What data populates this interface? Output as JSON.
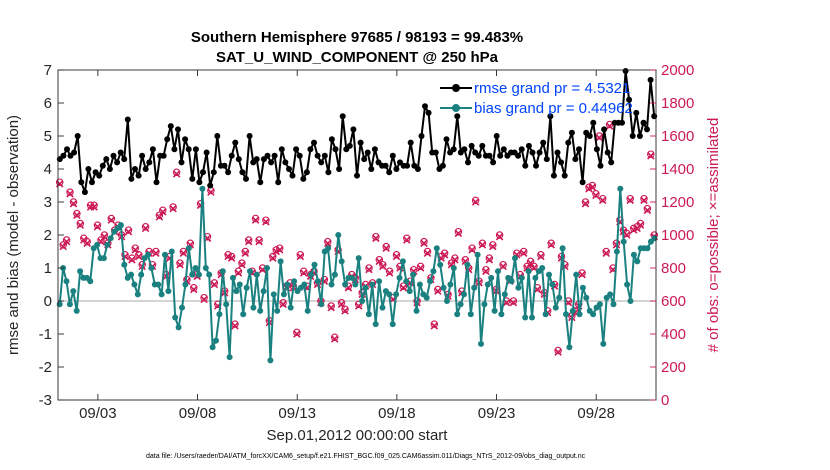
{
  "chart_data": {
    "type": "line",
    "title_line1": "Southern Hemisphere 97685 / 98193 = 99.483%",
    "title_line2": "SAT_U_WIND_COMPONENT @ 250 hPa",
    "xlabel": "Sep.01,2012 00:00:00 start",
    "ylabel_left": "rmse and bias (model - observation)",
    "ylabel_right": "# of obs: o=possible; ×=assimilated",
    "footer": "data file: /Users/raeder/DAI/ATM_forcXX/CAM6_setup/f.e21.FHIST_BGC.f09_025.CAM6assim.011/Diags_NTrS_2012-09/obs_diag_output.nc",
    "x_ticks": [
      {
        "label": "09/03",
        "day": 3
      },
      {
        "label": "09/08",
        "day": 8
      },
      {
        "label": "09/13",
        "day": 13
      },
      {
        "label": "09/18",
        "day": 18
      },
      {
        "label": "09/23",
        "day": 23
      },
      {
        "label": "09/28",
        "day": 28
      }
    ],
    "xlim": [
      1,
      31
    ],
    "ylim_left": [
      -3,
      7
    ],
    "ylim_right": [
      0,
      2000
    ],
    "y_ticks_left": [
      "-3",
      "-2",
      "-1",
      "0",
      "1",
      "2",
      "3",
      "4",
      "5",
      "6",
      "7"
    ],
    "y_ticks_right": [
      "0",
      "200",
      "400",
      "600",
      "800",
      "1000",
      "1200",
      "1400",
      "1600",
      "1800",
      "2000"
    ],
    "grid": false,
    "legend_position": "top-right",
    "colors": {
      "rmse": "#000000",
      "bias": "#1a8080",
      "obs": "#cc1a55",
      "legend_text": "#0044ff",
      "zero_line": "#bbbbbb"
    },
    "series": [
      {
        "name": "rmse grand pr = 4.5321",
        "axis": "left",
        "y": [
          4.3,
          4.4,
          4.6,
          4.4,
          4.5,
          5.0,
          3.6,
          3.3,
          4.0,
          3.6,
          3.9,
          3.8,
          4.1,
          4.3,
          4.0,
          4.4,
          4.2,
          4.5,
          4.3,
          5.5,
          3.7,
          4.0,
          3.8,
          4.4,
          4.0,
          4.2,
          4.6,
          3.6,
          4.4,
          4.4,
          4.9,
          5.3,
          4.6,
          5.2,
          4.2,
          4.9,
          4.6,
          3.7,
          4.6,
          3.6,
          3.9,
          4.5,
          3.5,
          3.9,
          5.0,
          4.1,
          4.1,
          3.9,
          4.4,
          4.8,
          4.3,
          3.9,
          3.7,
          5.0,
          4.2,
          4.3,
          3.6,
          4.3,
          4.4,
          4.2,
          4.4,
          3.6,
          4.6,
          4.2,
          4.0,
          3.8,
          4.6,
          4.4,
          3.7,
          3.9,
          4.6,
          4.8,
          4.4,
          4.2,
          4.4,
          3.9,
          4.9,
          4.6,
          4.0,
          5.6,
          4.6,
          4.7,
          5.2,
          3.8,
          4.8,
          4.3,
          4.5,
          4.0,
          4.6,
          4.2,
          4.1,
          4.1,
          3.9,
          4.4,
          4.0,
          4.2,
          4.1,
          4.1,
          4.8,
          4.1,
          4.0,
          5.0,
          5.9,
          5.7,
          4.5,
          4.5,
          4.0,
          4.1,
          4.9,
          4.5,
          4.6,
          5.6,
          4.5,
          4.6,
          4.2,
          4.7,
          4.5,
          4.4,
          4.7,
          4.4,
          4.4,
          4.2,
          5.0,
          4.4,
          4.6,
          4.4,
          4.5,
          4.5,
          4.4,
          4.6,
          4.1,
          4.7,
          4.5,
          4.1,
          4.5,
          4.8,
          4.3,
          5.6,
          3.8,
          4.5,
          4.2,
          3.8,
          4.8,
          5.1,
          4.3,
          4.6,
          3.6,
          5.1,
          5.0,
          5.4,
          4.6,
          4.1,
          5.2,
          4.5,
          4.2,
          5.4,
          5.4,
          5.4,
          7.0,
          6.1,
          5.0,
          5.7,
          5.0,
          5.4,
          5.2,
          6.7,
          5.6
        ]
      },
      {
        "name": "bias grand pr = 0.44962",
        "axis": "left",
        "y": [
          -0.1,
          1.0,
          0.6,
          -0.1,
          0.3,
          -0.3,
          0.9,
          0.7,
          0.7,
          0.6,
          1.6,
          1.7,
          1.3,
          1.3,
          1.7,
          1.9,
          2.1,
          2.2,
          2.3,
          1.1,
          0.7,
          0.8,
          0.5,
          0.2,
          0.8,
          1.3,
          1.4,
          1.0,
          0.5,
          0.5,
          0.2,
          1.4,
          0.3,
          1.5,
          -0.5,
          -0.8,
          -0.2,
          0.5,
          1.6,
          0.8,
          1.0,
          0.8,
          3.4,
          1.0,
          0.8,
          -1.4,
          -1.2,
          -0.4,
          0.9,
          -0.1,
          -1.7,
          0.7,
          0.3,
          0.5,
          -0.4,
          0.4,
          0.9,
          -0.2,
          0.8,
          -0.3,
          0.3,
          1.0,
          -1.8,
          0.2,
          -0.3,
          1.2,
          0.2,
          0.5,
          -0.2,
          0.6,
          0.3,
          0.4,
          0.5,
          -0.3,
          0.8,
          1.1,
          0.6,
          -0.1,
          1.5,
          1.6,
          0.5,
          0.8,
          2.0,
          1.2,
          0.5,
          0.7,
          0.7,
          0.5,
          1.3,
          0.0,
          0.4,
          -0.4,
          0.5,
          -0.7,
          0.6,
          -0.2,
          0.3,
          0.2,
          -0.7,
          0.2,
          0.7,
          1.2,
          0.6,
          0.3,
          0.8,
          -0.3,
          0.5,
          0.2,
          0.1,
          0.6,
          0.9,
          1.6,
          1.1,
          0.4,
          0.0,
          0.5,
          1.0,
          -0.4,
          -0.1,
          0.2,
          1.1,
          -0.4,
          0.4,
          1.4,
          -1.3,
          -0.1,
          0.5,
          0.7,
          -0.3,
          0.9,
          -0.4,
          0.2,
          0.7,
          0.6,
          1.3,
          0.4,
          0.7,
          -0.5,
          0.9,
          -0.5,
          0.7,
          0.9,
          1.0,
          -0.4,
          0.8,
          0.5,
          -0.2,
          0.1,
          1.6,
          -0.4,
          -1.4,
          -0.3,
          0.8,
          -0.4,
          0.4,
          0.1,
          -0.3,
          -0.4,
          -0.2,
          -0.1,
          -1.3,
          0.1,
          0.2,
          -0.1,
          1.5,
          3.4,
          1.8,
          0.5,
          0.0,
          1.4,
          1.2,
          1.6,
          1.6,
          1.6,
          1.8,
          1.9
        ]
      },
      {
        "name": "possible obs",
        "axis": "right",
        "marker": "circle",
        "y": [
          1320,
          940,
          970,
          1260,
          1200,
          1130,
          1070,
          980,
          960,
          1180,
          1180,
          1060,
          970,
          1000,
          950,
          1100,
          1030,
          1060,
          1000,
          880,
          1030,
          860,
          920,
          880,
          820,
          1050,
          900,
          820,
          900,
          1120,
          1150,
          760,
          870,
          1170,
          1380,
          830,
          900,
          730,
          950,
          680,
          760,
          1190,
          620,
          990,
          1270,
          710,
          580,
          770,
          660,
          880,
          870,
          460,
          780,
          830,
          900,
          970,
          780,
          1100,
          970,
          800,
          1090,
          480,
          870,
          910,
          920,
          590,
          690,
          710,
          690,
          410,
          880,
          780,
          690,
          760,
          780,
          710,
          600,
          730,
          960,
          570,
          380,
          910,
          590,
          550,
          690,
          760,
          740,
          580,
          650,
          700,
          800,
          710,
          990,
          850,
          820,
          930,
          780,
          620,
          880,
          810,
          690,
          980,
          720,
          790,
          600,
          810,
          960,
          900,
          740,
          460,
          670,
          870,
          890,
          640,
          830,
          860,
          1020,
          660,
          850,
          800,
          920,
          1210,
          720,
          950,
          790,
          860,
          940,
          670,
          1000,
          820,
          600,
          730,
          600,
          890,
          760,
          900,
          810,
          840,
          810,
          680,
          880,
          650,
          540,
          950,
          700,
          300,
          870,
          820,
          600,
          510,
          540,
          580,
          770,
          1200,
          1290,
          1300,
          1250,
          1600,
          1220,
          900,
          1670,
          800,
          950,
          1090,
          1030,
          1010,
          1220,
          1040,
          1050,
          1070,
          1220,
          1160,
          1490,
          1000
        ]
      },
      {
        "name": "assimilated obs",
        "axis": "right",
        "marker": "x",
        "y": [
          1310,
          930,
          960,
          1250,
          1190,
          1120,
          1060,
          970,
          950,
          1170,
          1170,
          1050,
          960,
          990,
          940,
          1090,
          1020,
          1050,
          990,
          870,
          1020,
          850,
          910,
          870,
          810,
          1040,
          890,
          810,
          890,
          1110,
          1140,
          750,
          860,
          1160,
          1370,
          820,
          890,
          720,
          940,
          670,
          750,
          1180,
          610,
          980,
          1260,
          700,
          570,
          760,
          650,
          870,
          860,
          450,
          770,
          820,
          890,
          960,
          770,
          1090,
          960,
          790,
          1080,
          470,
          860,
          900,
          910,
          580,
          680,
          700,
          680,
          400,
          870,
          770,
          680,
          750,
          770,
          700,
          590,
          720,
          950,
          560,
          370,
          900,
          580,
          540,
          680,
          750,
          730,
          570,
          640,
          690,
          790,
          700,
          980,
          840,
          810,
          920,
          770,
          610,
          870,
          800,
          680,
          970,
          710,
          780,
          590,
          800,
          950,
          890,
          730,
          450,
          660,
          860,
          880,
          630,
          820,
          850,
          1010,
          650,
          840,
          790,
          910,
          1200,
          710,
          940,
          780,
          850,
          930,
          660,
          990,
          810,
          590,
          720,
          590,
          880,
          750,
          890,
          800,
          830,
          800,
          670,
          870,
          640,
          530,
          940,
          690,
          290,
          860,
          810,
          590,
          500,
          530,
          570,
          760,
          1190,
          1280,
          1290,
          1240,
          1590,
          1210,
          890,
          1660,
          790,
          940,
          1080,
          1020,
          1000,
          1210,
          1030,
          1040,
          1060,
          1210,
          1150,
          1480,
          990
        ]
      }
    ]
  }
}
